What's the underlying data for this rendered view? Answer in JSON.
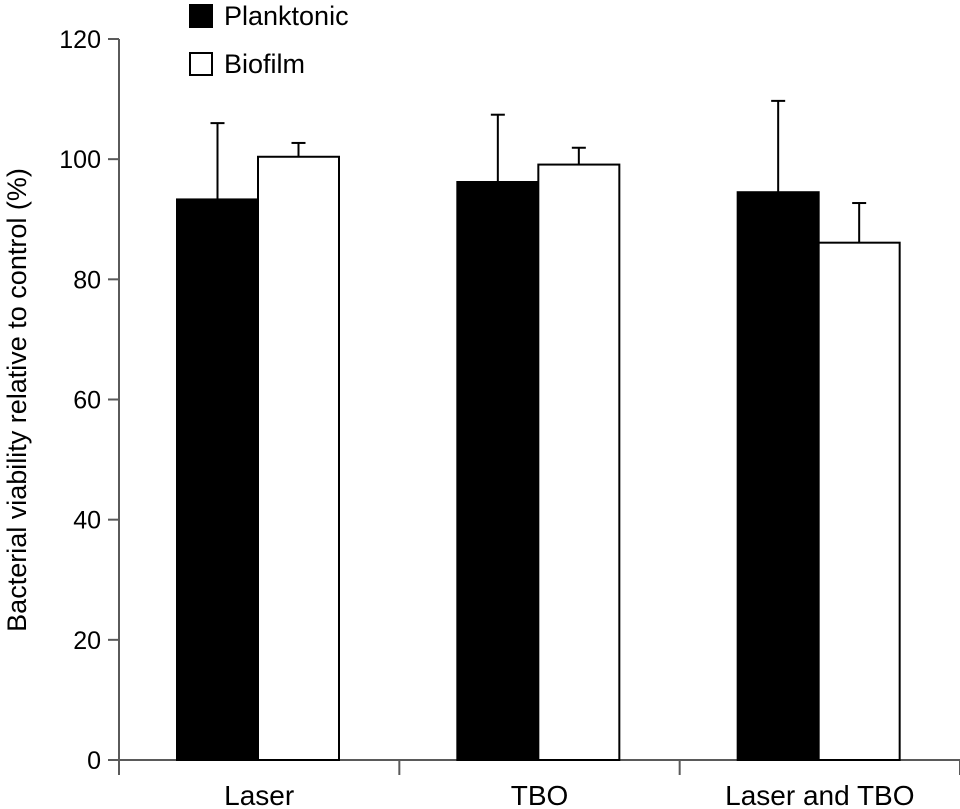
{
  "chart_data": {
    "type": "bar",
    "title": "",
    "xlabel": "",
    "ylabel": "Bacterial viability relative to control (%)",
    "categories": [
      "Laser",
      "TBO",
      "Laser and TBO"
    ],
    "ylim": [
      0,
      120
    ],
    "yticks": [
      0,
      20,
      40,
      60,
      80,
      100,
      120
    ],
    "grid": false,
    "legend_position": "top-left",
    "series": [
      {
        "name": "Planktonic",
        "color": "#000000",
        "values": [
          93.3,
          96.2,
          94.5
        ],
        "errors": [
          12.7,
          11.2,
          15.2
        ]
      },
      {
        "name": "Biofilm",
        "color": "#ffffff",
        "values": [
          100.4,
          99.1,
          86.1
        ],
        "errors": [
          2.3,
          2.8,
          6.6
        ]
      }
    ]
  }
}
